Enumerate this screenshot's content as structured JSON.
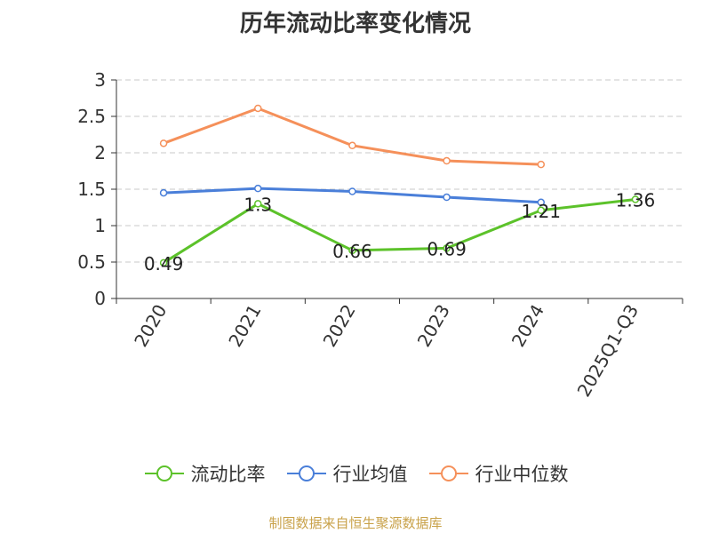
{
  "title": "历年流动比率变化情况",
  "source": "制图数据来自恒生聚源数据库",
  "chart_data": {
    "type": "line",
    "title": "历年流动比率变化情况",
    "categories": [
      "2020",
      "2021",
      "2022",
      "2023",
      "2024",
      "2025Q1-Q3"
    ],
    "ylim": [
      0,
      3
    ],
    "yticks": [
      0,
      0.5,
      1,
      1.5,
      2,
      2.5,
      3
    ],
    "ytick_labels": [
      "0",
      "0.5",
      "1",
      "1.5",
      "2",
      "2.5",
      "3"
    ],
    "grid": true,
    "legend_position": "bottom",
    "series": [
      {
        "name": "流动比率",
        "color": "#5cc22a",
        "values": [
          0.49,
          1.3,
          0.66,
          0.69,
          1.21,
          1.36
        ],
        "labels": [
          "0.49",
          "1.3",
          "0.66",
          "0.69",
          "1.21",
          "1.36"
        ]
      },
      {
        "name": "行业均值",
        "color": "#4a7fd9",
        "values": [
          1.45,
          1.51,
          1.47,
          1.39,
          1.32,
          null
        ]
      },
      {
        "name": "行业中位数",
        "color": "#f5905a",
        "values": [
          2.13,
          2.61,
          2.1,
          1.89,
          1.84,
          null
        ]
      }
    ]
  }
}
